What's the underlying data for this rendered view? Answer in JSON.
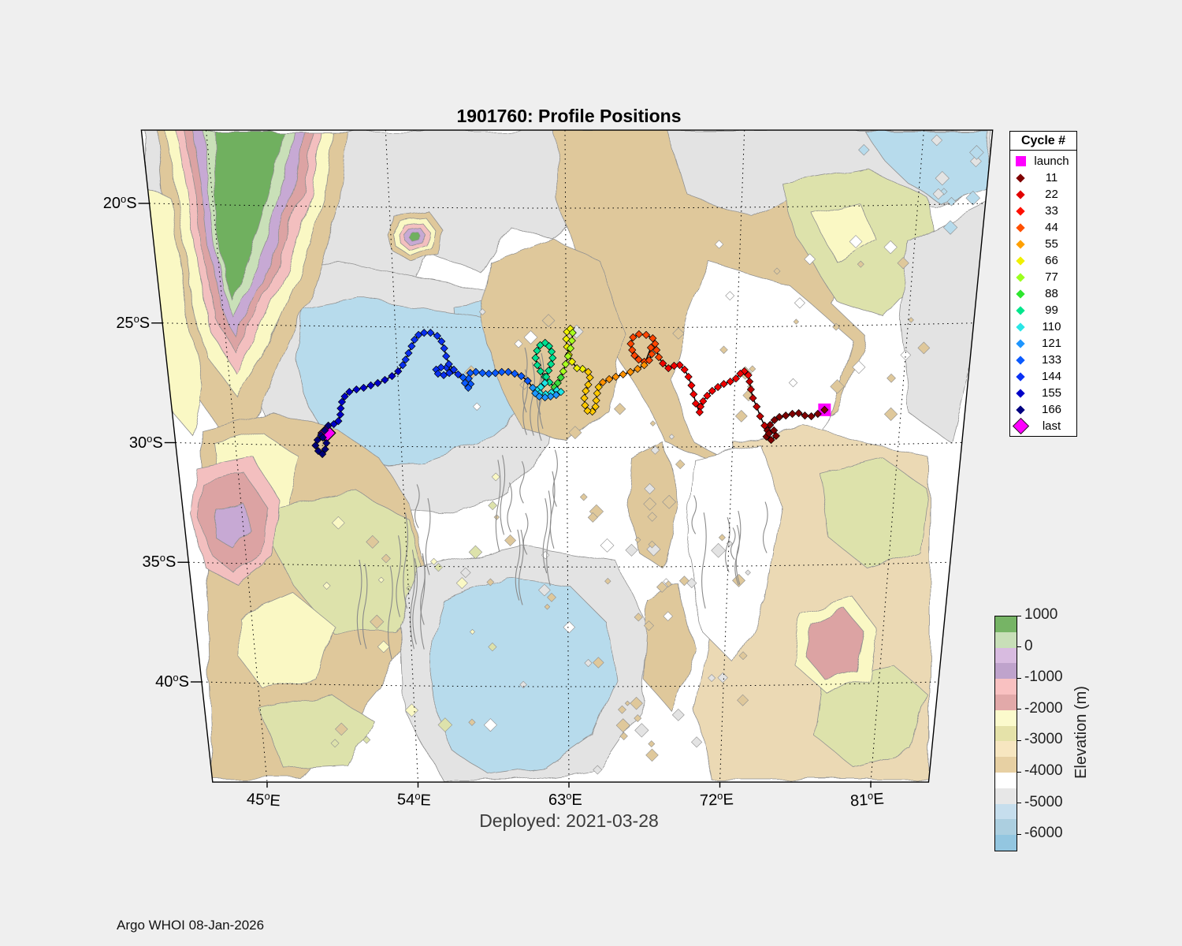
{
  "title": "1901760: Profile Positions",
  "subtitle": "Deployed: 2021-03-28",
  "footer": "Argo WHOI 08-Jan-2026",
  "axes": {
    "x_ticks": [
      {
        "label": "45°E",
        "lon": 45
      },
      {
        "label": "54°E",
        "lon": 54
      },
      {
        "label": "63°E",
        "lon": 63
      },
      {
        "label": "72°E",
        "lon": 72
      },
      {
        "label": "81°E",
        "lon": 81
      }
    ],
    "y_ticks": [
      {
        "label": "20°S",
        "lat": -20
      },
      {
        "label": "25°S",
        "lat": -25
      },
      {
        "label": "30°S",
        "lat": -30
      },
      {
        "label": "35°S",
        "lat": -35
      },
      {
        "label": "40°S",
        "lat": -40
      }
    ]
  },
  "legend": {
    "title": "Cycle #",
    "items": [
      {
        "label": "launch",
        "color": "#FF00FF",
        "marker": "square"
      },
      {
        "label": "11",
        "color": "#7F0000",
        "marker": "diamond"
      },
      {
        "label": "22",
        "color": "#E10000",
        "marker": "diamond"
      },
      {
        "label": "33",
        "color": "#FF0F00",
        "marker": "diamond"
      },
      {
        "label": "44",
        "color": "#FF4F00",
        "marker": "diamond"
      },
      {
        "label": "55",
        "color": "#FFA000",
        "marker": "diamond"
      },
      {
        "label": "66",
        "color": "#F0F000",
        "marker": "diamond"
      },
      {
        "label": "77",
        "color": "#9BFF1E",
        "marker": "diamond"
      },
      {
        "label": "88",
        "color": "#2EE62E",
        "marker": "diamond"
      },
      {
        "label": "99",
        "color": "#00E68C",
        "marker": "diamond"
      },
      {
        "label": "110",
        "color": "#29E6E6",
        "marker": "diamond"
      },
      {
        "label": "121",
        "color": "#1E96FF",
        "marker": "diamond"
      },
      {
        "label": "133",
        "color": "#0A5AFF",
        "marker": "diamond"
      },
      {
        "label": "144",
        "color": "#0A32F5",
        "marker": "diamond"
      },
      {
        "label": "155",
        "color": "#0000C8",
        "marker": "diamond"
      },
      {
        "label": "166",
        "color": "#000080",
        "marker": "diamond"
      },
      {
        "label": "last",
        "color": "#FF00FF",
        "marker": "diamond-large"
      }
    ]
  },
  "colorbar": {
    "label": "Elevation (m)",
    "tick_labels": [
      "1000",
      "0",
      "-1000",
      "-2000",
      "-3000",
      "-4000",
      "-5000",
      "-6000"
    ],
    "top_value": 1000,
    "bottom_value": -6500,
    "segment_size": 500,
    "segments": [
      "#76B465",
      "#C8DFB8",
      "#D8BBE0",
      "#BFA3CC",
      "#F9C1C1",
      "#E2A9A9",
      "#FBFACC",
      "#E5E2A9",
      "#F7E6C0",
      "#E7D0A3",
      "#FFFFFF",
      "#E7E7E7",
      "#C6DEED",
      "#ACCFE0",
      "#93C6E0"
    ]
  },
  "map_colors": {
    "white": "#FFFFFF",
    "gray": "#E3E3E3",
    "blue": "#B7DBEC",
    "tan": "#DFC89B",
    "tan2": "#EBD9B4",
    "yellow": "#FAF8C4",
    "olive": "#DDE2AB",
    "pink": "#F3BFBF",
    "rose": "#DCA3A3",
    "purple": "#C7A9D4",
    "green": "#6FB05F",
    "lightgreen": "#C9E0B8",
    "contour": "#909090",
    "border": "#000000"
  },
  "chart_data": {
    "type": "scatter",
    "title": "1901760: Profile Positions",
    "float_id": "1901760",
    "deployed": "2021-03-28",
    "basemap": "bathymetry contours (Indian Ocean)",
    "grid": "dotted graticule",
    "legend_position": "outside top-right",
    "lon_range": [
      41.75,
      84.45
    ],
    "lat_range": [
      -43.99,
      -16.74
    ],
    "launch": {
      "lon": 76.88,
      "lat": -28.43
    },
    "last": {
      "lon": 50.0,
      "lat": -29.4
    },
    "trajectory_segments": [
      {
        "color": "#7F0000",
        "points": [
          [
            76.88,
            -28.43
          ],
          [
            76.53,
            -28.6
          ],
          [
            76.19,
            -28.7
          ],
          [
            75.84,
            -28.67
          ],
          [
            75.5,
            -28.57
          ],
          [
            75.16,
            -28.6
          ],
          [
            74.81,
            -28.67
          ],
          [
            74.47,
            -28.73
          ],
          [
            74.21,
            -28.86
          ],
          [
            73.99,
            -29.06
          ],
          [
            73.86,
            -29.29
          ],
          [
            73.82,
            -29.55
          ],
          [
            74.08,
            -29.69
          ],
          [
            74.34,
            -29.52
          ],
          [
            74.21,
            -29.29
          ],
          [
            73.95,
            -29.42
          ]
        ]
      },
      {
        "color": "#BE0000",
        "points": [
          [
            73.69,
            -29.09
          ],
          [
            73.43,
            -28.7
          ],
          [
            73.22,
            -28.3
          ],
          [
            73.0,
            -27.94
          ],
          [
            72.87,
            -27.58
          ],
          [
            72.78,
            -27.25
          ]
        ]
      },
      {
        "color": "#F00000",
        "points": [
          [
            72.7,
            -26.98
          ],
          [
            72.48,
            -26.82
          ],
          [
            72.27,
            -26.92
          ],
          [
            72.05,
            -27.12
          ],
          [
            71.75,
            -27.25
          ],
          [
            71.41,
            -27.35
          ],
          [
            71.1,
            -27.48
          ],
          [
            70.8,
            -27.64
          ],
          [
            70.54,
            -27.84
          ],
          [
            70.33,
            -28.07
          ],
          [
            70.2,
            -28.3
          ],
          [
            70.16,
            -28.53
          ],
          [
            69.94,
            -28.17
          ],
          [
            69.81,
            -27.78
          ],
          [
            69.68,
            -27.41
          ],
          [
            69.51,
            -27.05
          ],
          [
            69.29,
            -26.75
          ],
          [
            69.03,
            -26.56
          ],
          [
            68.73,
            -26.59
          ],
          [
            68.43,
            -26.69
          ],
          [
            68.13,
            -26.49
          ]
        ]
      },
      {
        "color": "#FF4600",
        "points": [
          [
            67.91,
            -26.23
          ],
          [
            67.78,
            -25.93
          ],
          [
            67.7,
            -25.67
          ],
          [
            67.57,
            -25.44
          ],
          [
            67.22,
            -25.3
          ],
          [
            66.84,
            -25.27
          ],
          [
            66.53,
            -25.4
          ],
          [
            66.41,
            -25.67
          ],
          [
            66.49,
            -25.93
          ],
          [
            66.62,
            -26.16
          ],
          [
            66.84,
            -26.33
          ],
          [
            67.14,
            -26.42
          ],
          [
            67.4,
            -26.36
          ],
          [
            67.53,
            -26.1
          ],
          [
            67.48,
            -25.83
          ]
        ]
      },
      {
        "color": "#FF9100",
        "points": [
          [
            67.14,
            -26.56
          ],
          [
            66.79,
            -26.72
          ],
          [
            66.41,
            -26.85
          ],
          [
            66.02,
            -26.95
          ],
          [
            65.63,
            -27.05
          ],
          [
            65.28,
            -27.15
          ],
          [
            64.94,
            -27.28
          ]
        ]
      },
      {
        "color": "#FFC800",
        "points": [
          [
            64.72,
            -27.48
          ],
          [
            64.64,
            -27.74
          ],
          [
            64.59,
            -28.04
          ],
          [
            64.55,
            -28.3
          ],
          [
            64.38,
            -28.5
          ],
          [
            64.12,
            -28.47
          ],
          [
            63.99,
            -28.24
          ],
          [
            63.95,
            -27.94
          ],
          [
            64.03,
            -27.64
          ],
          [
            64.16,
            -27.38
          ],
          [
            64.25,
            -27.08
          ],
          [
            64.16,
            -26.85
          ]
        ]
      },
      {
        "color": "#F0F000",
        "points": [
          [
            63.86,
            -26.72
          ],
          [
            63.56,
            -26.69
          ],
          [
            63.3,
            -26.42
          ],
          [
            63.13,
            -26.13
          ],
          [
            63.04,
            -25.8
          ],
          [
            63.0,
            -25.47
          ],
          [
            63.04,
            -25.17
          ],
          [
            63.22,
            -25.04
          ]
        ]
      },
      {
        "color": "#A8FF1E",
        "points": [
          [
            63.34,
            -25.21
          ],
          [
            63.3,
            -25.54
          ],
          [
            63.22,
            -25.86
          ],
          [
            63.09,
            -26.19
          ],
          [
            62.96,
            -26.52
          ],
          [
            62.83,
            -26.82
          ]
        ]
      },
      {
        "color": "#3CDC3C",
        "points": [
          [
            62.7,
            -27.08
          ],
          [
            62.53,
            -27.31
          ],
          [
            62.35,
            -27.48
          ]
        ]
      },
      {
        "color": "#00E191",
        "points": [
          [
            62.09,
            -27.28
          ],
          [
            61.84,
            -27.05
          ],
          [
            61.62,
            -26.82
          ],
          [
            61.45,
            -26.56
          ],
          [
            61.36,
            -26.26
          ],
          [
            61.45,
            -25.96
          ],
          [
            61.62,
            -25.73
          ],
          [
            61.88,
            -25.63
          ],
          [
            62.09,
            -25.77
          ],
          [
            62.22,
            -26.0
          ],
          [
            62.27,
            -26.26
          ],
          [
            62.18,
            -26.52
          ],
          [
            62.05,
            -26.79
          ],
          [
            61.92,
            -27.05
          ]
        ]
      },
      {
        "color": "#1EE6E6",
        "points": [
          [
            61.84,
            -27.31
          ],
          [
            61.62,
            -27.48
          ],
          [
            61.41,
            -27.61
          ],
          [
            61.58,
            -27.74
          ],
          [
            61.88,
            -27.78
          ],
          [
            62.18,
            -27.71
          ],
          [
            62.48,
            -27.61
          ],
          [
            62.7,
            -27.68
          ]
        ]
      },
      {
        "color": "#1E96FF",
        "points": [
          [
            62.44,
            -27.81
          ],
          [
            62.14,
            -27.87
          ],
          [
            61.84,
            -27.91
          ],
          [
            61.53,
            -27.87
          ],
          [
            61.32,
            -27.74
          ],
          [
            61.19,
            -27.51
          ]
        ]
      },
      {
        "color": "#0A5AFF",
        "points": [
          [
            60.93,
            -27.22
          ],
          [
            60.59,
            -27.02
          ],
          [
            60.24,
            -26.92
          ],
          [
            59.9,
            -26.85
          ],
          [
            59.55,
            -26.85
          ],
          [
            59.21,
            -26.89
          ],
          [
            58.86,
            -26.92
          ],
          [
            58.52,
            -26.89
          ],
          [
            58.17,
            -26.85
          ],
          [
            57.87,
            -26.89
          ],
          [
            57.78,
            -27.12
          ],
          [
            57.87,
            -27.35
          ],
          [
            57.74,
            -27.51
          ],
          [
            57.57,
            -27.31
          ],
          [
            57.48,
            -27.08
          ]
        ]
      },
      {
        "color": "#0A30F0",
        "points": [
          [
            57.22,
            -26.95
          ],
          [
            56.92,
            -26.79
          ],
          [
            56.62,
            -26.66
          ],
          [
            56.32,
            -26.66
          ],
          [
            56.06,
            -26.75
          ],
          [
            56.15,
            -26.92
          ],
          [
            56.45,
            -26.98
          ],
          [
            56.75,
            -26.89
          ],
          [
            57.0,
            -26.75
          ],
          [
            56.75,
            -26.52
          ],
          [
            56.62,
            -26.19
          ],
          [
            56.53,
            -25.86
          ],
          [
            56.4,
            -25.57
          ],
          [
            56.19,
            -25.34
          ],
          [
            55.84,
            -25.21
          ],
          [
            55.5,
            -25.21
          ],
          [
            55.2,
            -25.3
          ],
          [
            54.98,
            -25.5
          ],
          [
            54.81,
            -25.77
          ],
          [
            54.63,
            -26.06
          ],
          [
            54.46,
            -26.33
          ],
          [
            54.29,
            -26.56
          ]
        ]
      },
      {
        "color": "#0000C8",
        "points": [
          [
            54.03,
            -26.82
          ],
          [
            53.69,
            -27.02
          ],
          [
            53.3,
            -27.18
          ],
          [
            52.91,
            -27.31
          ],
          [
            52.53,
            -27.41
          ],
          [
            52.14,
            -27.51
          ],
          [
            51.75,
            -27.58
          ],
          [
            51.36,
            -27.68
          ],
          [
            51.1,
            -27.87
          ],
          [
            50.93,
            -28.1
          ],
          [
            50.84,
            -28.37
          ],
          [
            50.8,
            -28.63
          ],
          [
            50.67,
            -28.9
          ],
          [
            50.41,
            -29.03
          ]
        ]
      },
      {
        "color": "#000078",
        "points": [
          [
            50.11,
            -29.09
          ],
          [
            49.9,
            -29.29
          ],
          [
            49.68,
            -29.49
          ],
          [
            49.47,
            -29.69
          ],
          [
            49.34,
            -29.92
          ],
          [
            49.47,
            -30.15
          ],
          [
            49.68,
            -30.28
          ],
          [
            49.85,
            -30.08
          ],
          [
            49.94,
            -29.82
          ],
          [
            49.77,
            -29.59
          ]
        ]
      }
    ]
  }
}
